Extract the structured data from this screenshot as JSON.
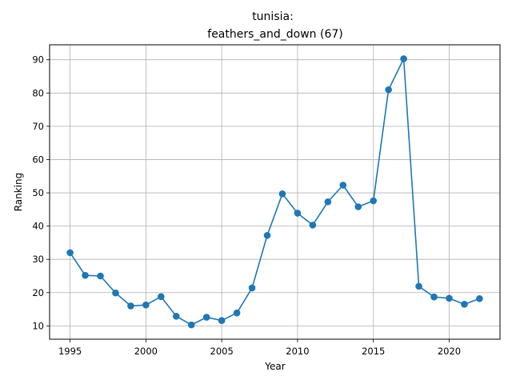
{
  "chart_data": {
    "type": "line",
    "title_line1": "tunisia:",
    "title_line2": "feathers_and_down (67)",
    "xlabel": "Year",
    "ylabel": "Ranking",
    "xlim": [
      1993.65,
      2023.35
    ],
    "ylim": [
      6.0,
      94.5
    ],
    "xticks": [
      1995,
      2000,
      2005,
      2010,
      2015,
      2020
    ],
    "yticks": [
      10,
      20,
      30,
      40,
      50,
      60,
      70,
      80,
      90
    ],
    "grid": true,
    "line_color": "#1f77b4",
    "series": [
      {
        "x": [
          1995,
          1996,
          1997,
          1998,
          1999,
          2000,
          2001,
          2002,
          2003,
          2004,
          2005,
          2006,
          2007,
          2008,
          2009,
          2010,
          2011,
          2012,
          2013,
          2014,
          2015,
          2016,
          2017,
          2018,
          2019,
          2020,
          2021,
          2022
        ],
        "values": [
          32.0,
          25.2,
          25.0,
          19.9,
          16.0,
          16.3,
          18.8,
          12.9,
          10.3,
          12.6,
          11.6,
          13.9,
          21.4,
          37.2,
          49.7,
          43.9,
          40.3,
          47.3,
          52.3,
          45.8,
          47.6,
          81.0,
          90.3,
          21.9,
          18.7,
          18.3,
          16.5,
          18.2
        ]
      }
    ]
  }
}
